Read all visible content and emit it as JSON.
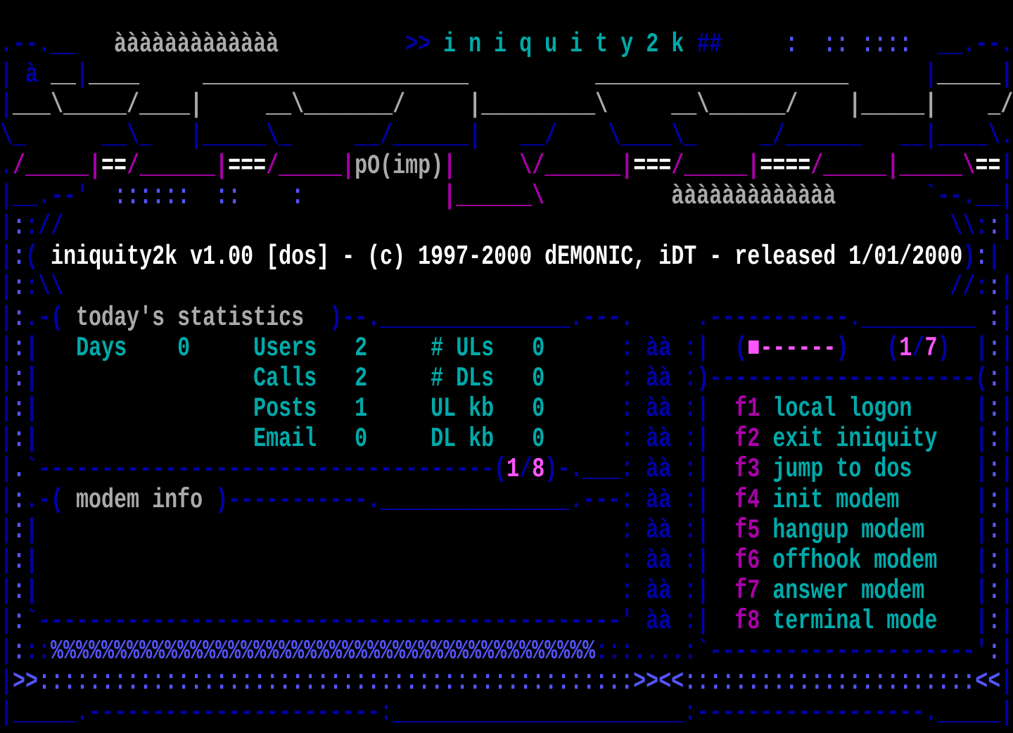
{
  "palette": {
    "B": "#0000aa",
    "L": "#5555ff",
    "C": "#00aaaa",
    "G": "#aaaaaa",
    "W": "#ffffff",
    "M": "#aa00aa",
    "P": "#ff55ff"
  },
  "screen": {
    "rows": [
      [],
      [
        [
          ".--.__",
          "B"
        ],
        [
          "   ",
          "B"
        ],
        [
          "ààààààààààààà",
          "G",
          "logo-accent"
        ],
        [
          "          ",
          "B"
        ],
        [
          ">>",
          "B"
        ],
        [
          " i n i q u i t y 2 k ",
          "C",
          "app-logo-title"
        ],
        [
          "##",
          "B"
        ],
        [
          "     ",
          "B"
        ],
        [
          ":  :: ::::",
          "L"
        ],
        [
          "  ",
          "B"
        ],
        [
          "__.--.",
          "B"
        ]
      ],
      [
        [
          "| à",
          "B"
        ],
        [
          " ",
          "B"
        ],
        [
          "__",
          "G"
        ],
        [
          "|",
          "B"
        ],
        [
          "____",
          "G"
        ],
        [
          "     ",
          "B"
        ],
        [
          "_____________________",
          "G"
        ],
        [
          "          ",
          "B"
        ],
        [
          "____________________",
          "G"
        ],
        [
          "      ",
          "B"
        ],
        [
          "|",
          "B"
        ],
        [
          "_____",
          "G"
        ],
        [
          "|",
          "B"
        ]
      ],
      [
        [
          "|",
          "B"
        ],
        [
          "___\\_____/____|",
          "G"
        ],
        [
          "     ",
          "B"
        ],
        [
          "__\\_______/",
          "G"
        ],
        [
          "     ",
          "B"
        ],
        [
          "|_________\\",
          "G"
        ],
        [
          "     ",
          "B"
        ],
        [
          "__\\______/",
          "G"
        ],
        [
          "    ",
          "B"
        ],
        [
          "|_____|",
          "G"
        ],
        [
          "    ",
          "B"
        ],
        [
          "_/",
          "G"
        ]
      ],
      [
        [
          "\\_",
          "B"
        ],
        [
          "      ",
          "B"
        ],
        [
          "__\\_",
          "B"
        ],
        [
          "   ",
          "B"
        ],
        [
          "|_____\\_",
          "B"
        ],
        [
          "     ",
          "B"
        ],
        [
          "__/______|",
          "B"
        ],
        [
          "   ",
          "B"
        ],
        [
          "__/",
          "B"
        ],
        [
          "    ",
          "B"
        ],
        [
          "\\____\\_",
          "B"
        ],
        [
          "     ",
          "B"
        ],
        [
          "_/______",
          "B"
        ],
        [
          "   ",
          "B"
        ],
        [
          "__|____\\.",
          "B"
        ]
      ],
      [
        [
          ".",
          "B"
        ],
        [
          "/_____|",
          "M"
        ],
        [
          "==",
          "W"
        ],
        [
          "/______|",
          "M"
        ],
        [
          "===",
          "W"
        ],
        [
          "/_____|",
          "M"
        ],
        [
          "pO(imp)",
          "G",
          "logo-credit"
        ],
        [
          "|",
          "M"
        ],
        [
          "     ",
          "B"
        ],
        [
          "\\/______|",
          "M"
        ],
        [
          "===",
          "W"
        ],
        [
          "/_____|",
          "M"
        ],
        [
          "====",
          "W"
        ],
        [
          "/_____|_____\\",
          "M"
        ],
        [
          "==",
          "W"
        ],
        [
          "|",
          "B"
        ]
      ],
      [
        [
          "|__.--'",
          "B"
        ],
        [
          "  ",
          "B"
        ],
        [
          "::::::  ::    :",
          "L"
        ],
        [
          "           ",
          "B"
        ],
        [
          "|______\\",
          "M"
        ],
        [
          "          ",
          "B"
        ],
        [
          "ààààààààààààà",
          "G",
          "logo-accent"
        ],
        [
          "       ",
          "B"
        ],
        [
          "`--.__|",
          "B"
        ]
      ],
      [
        [
          "|",
          "B"
        ],
        [
          ":",
          "L"
        ],
        [
          ":",
          "B"
        ],
        [
          "//",
          "B"
        ],
        [
          "                                                                      ",
          "B"
        ],
        [
          "\\\\",
          "B"
        ],
        [
          ":",
          "B"
        ],
        [
          ":",
          "L"
        ],
        [
          "|",
          "B"
        ]
      ],
      [
        [
          "|",
          "B"
        ],
        [
          ":",
          "L"
        ],
        [
          "(",
          "B"
        ],
        [
          " ",
          "B"
        ],
        [
          "iniquity2k v1.00 [dos] - (c) 1997-2000 dEMONIC, iDT - released 1/01/2000",
          "W",
          "version-banner"
        ],
        [
          ")",
          "B"
        ],
        [
          ":",
          "L"
        ],
        [
          "|",
          "B"
        ]
      ],
      [
        [
          "|",
          "B"
        ],
        [
          ":",
          "L"
        ],
        [
          ":",
          "B"
        ],
        [
          "\\\\",
          "B"
        ],
        [
          "                                                                      ",
          "B"
        ],
        [
          "//",
          "B"
        ],
        [
          ":",
          "B"
        ],
        [
          ":",
          "L"
        ],
        [
          "|",
          "B"
        ]
      ],
      [
        [
          "|",
          "B"
        ],
        [
          ":",
          "L"
        ],
        [
          ".-( ",
          "B"
        ],
        [
          "today's statistics",
          "G",
          "stats-panel-title"
        ],
        [
          "  )--._______________.---.",
          "B"
        ],
        [
          "     ",
          "B"
        ],
        [
          ".-----------._________",
          "B"
        ],
        [
          " ",
          "B"
        ],
        [
          ":",
          "L"
        ],
        [
          "|",
          "B"
        ]
      ],
      [
        [
          "|",
          "B"
        ],
        [
          ":",
          "L"
        ],
        [
          "|",
          "B"
        ],
        [
          "   ",
          "B"
        ],
        [
          "Days",
          "C",
          "stat-label-days"
        ],
        [
          "    ",
          "B"
        ],
        [
          "0",
          "C",
          "stat-value-days"
        ],
        [
          "     ",
          "B"
        ],
        [
          "Users",
          "C",
          "stat-label-users"
        ],
        [
          "   ",
          "B"
        ],
        [
          "2",
          "C",
          "stat-value-users"
        ],
        [
          "     ",
          "B"
        ],
        [
          "# ULs",
          "C",
          "stat-label-uploads"
        ],
        [
          "   ",
          "B"
        ],
        [
          "0",
          "C",
          "stat-value-uploads"
        ],
        [
          "      ",
          "B"
        ],
        [
          ": àà :|",
          "B"
        ],
        [
          "  ",
          "B"
        ],
        [
          "(",
          "B"
        ],
        [
          "■------",
          "P",
          "menu-page-bar"
        ],
        [
          ")",
          "B"
        ],
        [
          "   ",
          "B"
        ],
        [
          "(",
          "B"
        ],
        [
          "1",
          "P",
          "menu-page-current"
        ],
        [
          "/",
          "B"
        ],
        [
          "7",
          "P",
          "menu-page-total"
        ],
        [
          ")",
          "B"
        ],
        [
          "  ",
          "B"
        ],
        [
          "|",
          "B"
        ],
        [
          ":",
          "L"
        ],
        [
          "|",
          "B"
        ]
      ],
      [
        [
          "|",
          "B"
        ],
        [
          ":",
          "L"
        ],
        [
          "|",
          "B"
        ],
        [
          "                 ",
          "B"
        ],
        [
          "Calls",
          "C",
          "stat-label-calls"
        ],
        [
          "   ",
          "B"
        ],
        [
          "2",
          "C",
          "stat-value-calls"
        ],
        [
          "     ",
          "B"
        ],
        [
          "# DLs",
          "C",
          "stat-label-downloads"
        ],
        [
          "   ",
          "B"
        ],
        [
          "0",
          "C",
          "stat-value-downloads"
        ],
        [
          "      ",
          "B"
        ],
        [
          ": àà :)",
          "B"
        ],
        [
          "---------------------",
          "B"
        ],
        [
          "(",
          "B"
        ],
        [
          ":",
          "L"
        ],
        [
          "|",
          "B"
        ]
      ],
      [
        [
          "|",
          "B"
        ],
        [
          ":",
          "L"
        ],
        [
          "|",
          "B"
        ],
        [
          "                 ",
          "B"
        ],
        [
          "Posts",
          "C",
          "stat-label-posts"
        ],
        [
          "   ",
          "B"
        ],
        [
          "1",
          "C",
          "stat-value-posts"
        ],
        [
          "     ",
          "B"
        ],
        [
          "UL kb",
          "C",
          "stat-label-ul-kb"
        ],
        [
          "   ",
          "B"
        ],
        [
          "0",
          "C",
          "stat-value-ul-kb"
        ],
        [
          "      ",
          "B"
        ],
        [
          ": àà :|",
          "B"
        ],
        [
          "  ",
          "B"
        ],
        [
          "f1",
          "M",
          "menu-item-f1-key",
          1
        ],
        [
          " ",
          "B"
        ],
        [
          "local logon",
          "C",
          "menu-item-f1-label",
          1
        ],
        [
          "     ",
          "B"
        ],
        [
          "|",
          "B"
        ],
        [
          ":",
          "L"
        ],
        [
          "|",
          "B"
        ]
      ],
      [
        [
          "|",
          "B"
        ],
        [
          ":",
          "L"
        ],
        [
          "|",
          "B"
        ],
        [
          "                 ",
          "B"
        ],
        [
          "Email",
          "C",
          "stat-label-email"
        ],
        [
          "   ",
          "B"
        ],
        [
          "0",
          "C",
          "stat-value-email"
        ],
        [
          "     ",
          "B"
        ],
        [
          "DL kb",
          "C",
          "stat-label-dl-kb"
        ],
        [
          "   ",
          "B"
        ],
        [
          "0",
          "C",
          "stat-value-dl-kb"
        ],
        [
          "      ",
          "B"
        ],
        [
          ": àà :|",
          "B"
        ],
        [
          "  ",
          "B"
        ],
        [
          "f2",
          "M",
          "menu-item-f2-key",
          1
        ],
        [
          " ",
          "B"
        ],
        [
          "exit iniquity",
          "C",
          "menu-item-f2-label",
          1
        ],
        [
          "   ",
          "B"
        ],
        [
          "|",
          "B"
        ],
        [
          ":",
          "L"
        ],
        [
          "|",
          "B"
        ]
      ],
      [
        [
          "|",
          "B"
        ],
        [
          ".",
          "L"
        ],
        [
          "`",
          "B"
        ],
        [
          "------------------------------------",
          "B"
        ],
        [
          "(",
          "B"
        ],
        [
          "1",
          "P",
          "stats-page-current"
        ],
        [
          "/",
          "B"
        ],
        [
          "8",
          "P",
          "stats-page-total"
        ],
        [
          ")-.___",
          "B"
        ],
        [
          ": àà :|",
          "B"
        ],
        [
          "  ",
          "B"
        ],
        [
          "f3",
          "M",
          "menu-item-f3-key",
          1
        ],
        [
          " ",
          "B"
        ],
        [
          "jump to dos",
          "C",
          "menu-item-f3-label",
          1
        ],
        [
          "     ",
          "B"
        ],
        [
          "|",
          "B"
        ],
        [
          ":",
          "L"
        ],
        [
          "|",
          "B"
        ]
      ],
      [
        [
          "|",
          "B"
        ],
        [
          ":",
          "L"
        ],
        [
          ".-( ",
          "B"
        ],
        [
          "modem info",
          "G",
          "modem-panel-title"
        ],
        [
          " )-----------._______________.---",
          "B"
        ],
        [
          ": àà :|",
          "B"
        ],
        [
          "  ",
          "B"
        ],
        [
          "f4",
          "M",
          "menu-item-f4-key",
          1
        ],
        [
          " ",
          "B"
        ],
        [
          "init modem",
          "C",
          "menu-item-f4-label",
          1
        ],
        [
          "      ",
          "B"
        ],
        [
          "|",
          "B"
        ],
        [
          ":",
          "L"
        ],
        [
          "|",
          "B"
        ]
      ],
      [
        [
          "|",
          "B"
        ],
        [
          ":",
          "L"
        ],
        [
          "|",
          "B"
        ],
        [
          "                                              ",
          "B"
        ],
        [
          ": àà :|",
          "B"
        ],
        [
          "  ",
          "B"
        ],
        [
          "f5",
          "M",
          "menu-item-f5-key",
          1
        ],
        [
          " ",
          "B"
        ],
        [
          "hangup modem",
          "C",
          "menu-item-f5-label",
          1
        ],
        [
          "    ",
          "B"
        ],
        [
          "|",
          "B"
        ],
        [
          ":",
          "L"
        ],
        [
          "|",
          "B"
        ]
      ],
      [
        [
          "|",
          "B"
        ],
        [
          ":",
          "L"
        ],
        [
          "|",
          "B"
        ],
        [
          "                                              ",
          "B"
        ],
        [
          ": àà :|",
          "B"
        ],
        [
          "  ",
          "B"
        ],
        [
          "f6",
          "M",
          "menu-item-f6-key",
          1
        ],
        [
          " ",
          "B"
        ],
        [
          "offhook modem",
          "C",
          "menu-item-f6-label",
          1
        ],
        [
          "   ",
          "B"
        ],
        [
          "|",
          "B"
        ],
        [
          ":",
          "L"
        ],
        [
          "|",
          "B"
        ]
      ],
      [
        [
          "|",
          "B"
        ],
        [
          ":",
          "L"
        ],
        [
          "|",
          "B"
        ],
        [
          "                                              ",
          "B"
        ],
        [
          ": àà :|",
          "B"
        ],
        [
          "  ",
          "B"
        ],
        [
          "f7",
          "M",
          "menu-item-f7-key",
          1
        ],
        [
          " ",
          "B"
        ],
        [
          "answer modem",
          "C",
          "menu-item-f7-label",
          1
        ],
        [
          "    ",
          "B"
        ],
        [
          "|",
          "B"
        ],
        [
          ":",
          "L"
        ],
        [
          "|",
          "B"
        ]
      ],
      [
        [
          "|",
          "B"
        ],
        [
          ":",
          "L"
        ],
        [
          "`",
          "B"
        ],
        [
          "----------------------------------------------",
          "B"
        ],
        [
          "'",
          "B"
        ],
        [
          " àà :|",
          "B"
        ],
        [
          "  ",
          "B"
        ],
        [
          "f8",
          "M",
          "menu-item-f8-key",
          1
        ],
        [
          " ",
          "B"
        ],
        [
          "terminal mode",
          "C",
          "menu-item-f8-label",
          1
        ],
        [
          "   ",
          "B"
        ],
        [
          "|",
          "B"
        ],
        [
          ":",
          "L"
        ],
        [
          "|",
          "B"
        ]
      ],
      [
        [
          "|",
          "B"
        ],
        [
          ":",
          "L"
        ],
        [
          "::",
          "B"
        ],
        [
          "%%%%%%%%%%%%%%%%%%%%%%%%%%%%%%%%%%%%%%%%%%%",
          "L"
        ],
        [
          ":::",
          "B"
        ],
        [
          "....",
          "B"
        ],
        [
          ":`",
          "B"
        ],
        [
          "---------------------",
          "B"
        ],
        [
          "'",
          "B"
        ],
        [
          ":",
          "L"
        ],
        [
          "|",
          "B"
        ]
      ],
      [
        [
          "|",
          "B"
        ],
        [
          ">>",
          "L"
        ],
        [
          ":::::::::::::::::::::::::::::::::::::::::::::::",
          "L"
        ],
        [
          ">><<",
          "L"
        ],
        [
          ":::::::::::::::::::::::",
          "L"
        ],
        [
          "<<",
          "L"
        ],
        [
          "|",
          "B"
        ]
      ],
      [
        [
          "|_____.",
          "B"
        ],
        [
          "-----------------------",
          "B"
        ],
        [
          ":",
          "B"
        ],
        [
          "_______________________",
          "B"
        ],
        [
          ":",
          "B"
        ],
        [
          "------------------",
          "B"
        ],
        [
          "._____|",
          "B"
        ]
      ]
    ]
  }
}
